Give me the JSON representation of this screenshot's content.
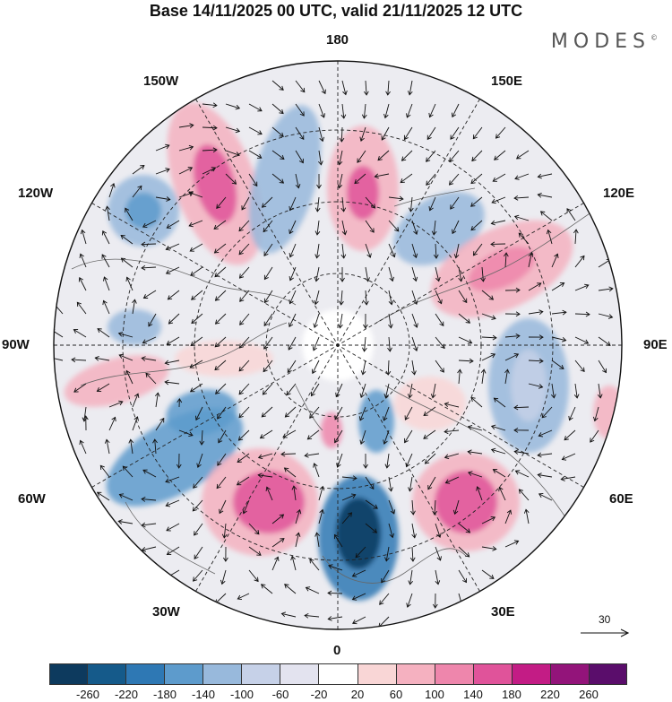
{
  "header": {
    "title": "Base 14/11/2025 00 UTC, valid 21/11/2025 12 UTC",
    "brand": "MODES",
    "brand_mark": "©"
  },
  "map": {
    "longitude_labels": {
      "top": "180",
      "top_left": "150W",
      "top_right": "150E",
      "upper_left": "120W",
      "upper_right": "120E",
      "left": "90W",
      "right": "90E",
      "lower_left": "60W",
      "lower_right": "60E",
      "bottom_left": "30W",
      "bottom_right": "30E",
      "bottom": "0"
    },
    "reference_vector_label": "30"
  },
  "colorbar": {
    "colors": [
      "#0d3a5e",
      "#155a8a",
      "#2e78b4",
      "#5d9bcc",
      "#98b9dc",
      "#c6d1e8",
      "#e3e3ef",
      "#ffffff",
      "#f9d6d6",
      "#f5b1c0",
      "#ee86ac",
      "#e0539a",
      "#c31c85",
      "#93147a",
      "#5a0d6b"
    ],
    "ticks": [
      "-260",
      "-220",
      "-180",
      "-140",
      "-100",
      "-60",
      "-20",
      "20",
      "60",
      "100",
      "140",
      "180",
      "220",
      "260"
    ]
  }
}
